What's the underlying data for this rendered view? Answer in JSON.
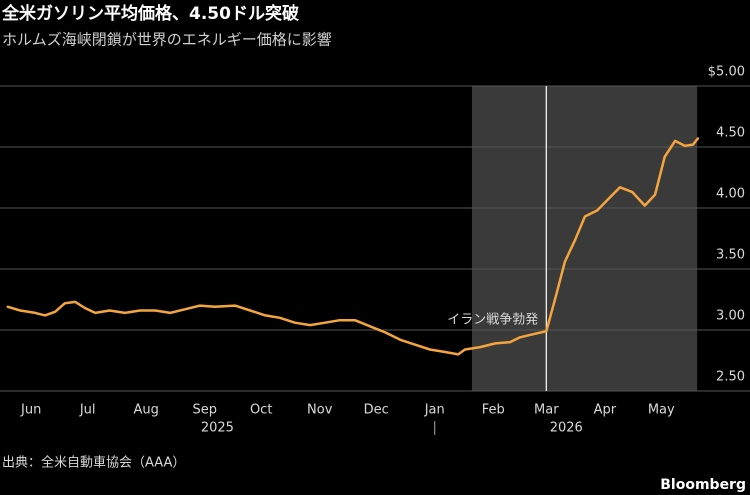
{
  "chart_data": {
    "type": "line",
    "title": "全米ガソリン平均価格、4.50ドル突破",
    "subtitle": "ホルムズ海峡閉鎖が世界のエネルギー価格に影響",
    "source": "出典：全米自動車協会（AAA）",
    "brand": "Bloomberg",
    "x": [
      2025.38,
      2025.398,
      2025.42,
      2025.434,
      2025.449,
      2025.463,
      2025.478,
      2025.492,
      2025.507,
      2025.528,
      2025.55,
      2025.572,
      2025.594,
      2025.616,
      2025.637,
      2025.659,
      2025.681,
      2025.71,
      2025.732,
      2025.754,
      2025.775,
      2025.797,
      2025.819,
      2025.841,
      2025.862,
      2025.884,
      2025.906,
      2025.928,
      2025.95,
      2025.971,
      2025.993,
      2026.015,
      2026.034,
      2026.044,
      2026.066,
      2026.088,
      2026.109,
      2026.124,
      2026.146,
      2026.162,
      2026.175,
      2026.189,
      2026.204,
      2026.218,
      2026.236,
      2026.255,
      2026.269,
      2026.287,
      2026.305,
      2026.32,
      2026.334,
      2026.349,
      2026.363,
      2026.375,
      2026.382
    ],
    "series": [
      {
        "name": "全米ガソリン平均価格",
        "color": "#f5a53d",
        "values": [
          3.19,
          3.16,
          3.14,
          3.12,
          3.15,
          3.22,
          3.23,
          3.18,
          3.14,
          3.16,
          3.14,
          3.16,
          3.16,
          3.14,
          3.17,
          3.2,
          3.19,
          3.2,
          3.16,
          3.12,
          3.1,
          3.06,
          3.04,
          3.06,
          3.08,
          3.08,
          3.03,
          2.98,
          2.92,
          2.88,
          2.84,
          2.82,
          2.8,
          2.84,
          2.86,
          2.89,
          2.9,
          2.94,
          2.97,
          2.99,
          3.26,
          3.56,
          3.74,
          3.93,
          3.98,
          4.09,
          4.17,
          4.13,
          4.02,
          4.11,
          4.42,
          4.55,
          4.51,
          4.52,
          4.57
        ]
      }
    ],
    "xlim": [
      2025.3687,
      2026.4578
    ],
    "xticks": [
      {
        "value": 2025.414,
        "label": "Jun"
      },
      {
        "value": 2025.496,
        "label": "Jul"
      },
      {
        "value": 2025.581,
        "label": "Aug"
      },
      {
        "value": 2025.666,
        "label": "Sep"
      },
      {
        "value": 2025.748,
        "label": "Oct"
      },
      {
        "value": 2025.833,
        "label": "Nov"
      },
      {
        "value": 2025.915,
        "label": "Dec"
      },
      {
        "value": 2026.0,
        "label": "Jan"
      },
      {
        "value": 2026.085,
        "label": "Feb"
      },
      {
        "value": 2026.162,
        "label": "Mar"
      },
      {
        "value": 2026.247,
        "label": "Apr"
      },
      {
        "value": 2026.329,
        "label": "May"
      }
    ],
    "years": [
      "2025",
      "2026"
    ],
    "ylim": [
      2.5,
      5.0
    ],
    "yticks": [
      {
        "value": 2.5,
        "label": "2.50"
      },
      {
        "value": 3.0,
        "label": "3.00"
      },
      {
        "value": 3.5,
        "label": "3.50"
      },
      {
        "value": 4.0,
        "label": "4.00"
      },
      {
        "value": 4.5,
        "label": "4.50"
      },
      {
        "value": 5.0,
        "label": "$5.00"
      }
    ],
    "grid": true,
    "shade": [
      2026.054,
      2026.381
    ],
    "event": {
      "x": 2026.162,
      "label": "イラン戦争勃発"
    }
  }
}
